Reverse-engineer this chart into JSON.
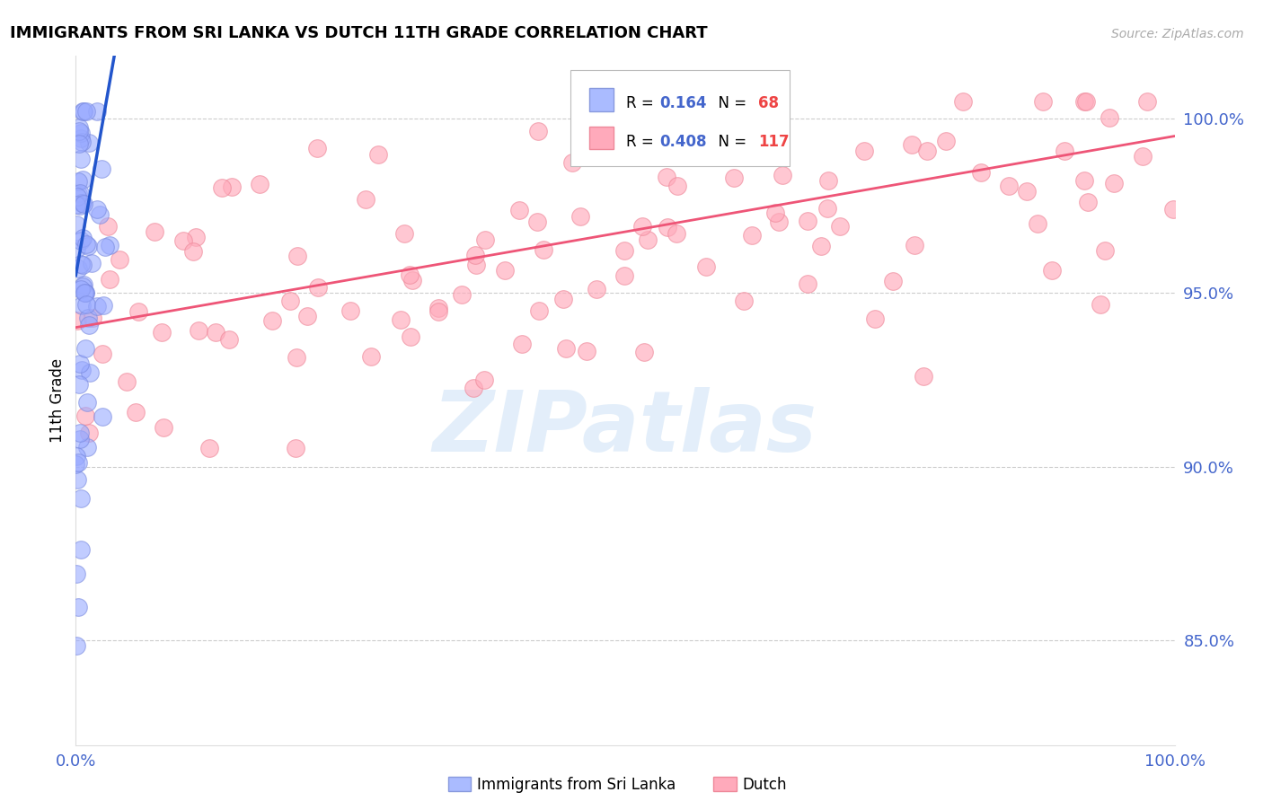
{
  "title": "IMMIGRANTS FROM SRI LANKA VS DUTCH 11TH GRADE CORRELATION CHART",
  "source": "Source: ZipAtlas.com",
  "ylabel": "11th Grade",
  "sri_lanka_color": "#99aaff",
  "sri_lanka_edge": "#7788dd",
  "dutch_color": "#ffaabb",
  "dutch_edge": "#ee8899",
  "trend_sri_lanka_color": "#2255cc",
  "trend_dutch_color": "#ee5577",
  "background_color": "#ffffff",
  "grid_color": "#cccccc",
  "ytick_color": "#4466cc",
  "xtick_color": "#4466cc",
  "right_yticks": [
    0.85,
    0.9,
    0.95,
    1.0
  ],
  "right_ytick_labels": [
    "85.0%",
    "90.0%",
    "95.0%",
    "100.0%"
  ],
  "ylim_min": 0.82,
  "ylim_max": 1.018,
  "xlim_min": 0.0,
  "xlim_max": 1.0,
  "legend_r1": "R = ",
  "legend_v1": "0.164",
  "legend_n1": "N = ",
  "legend_nv1": "68",
  "legend_r2": "R = ",
  "legend_v2": "0.408",
  "legend_n2": "N = ",
  "legend_nv2": "117",
  "watermark": "ZIPatlas",
  "bottom_label1": "Immigrants from Sri Lanka",
  "bottom_label2": "Dutch"
}
